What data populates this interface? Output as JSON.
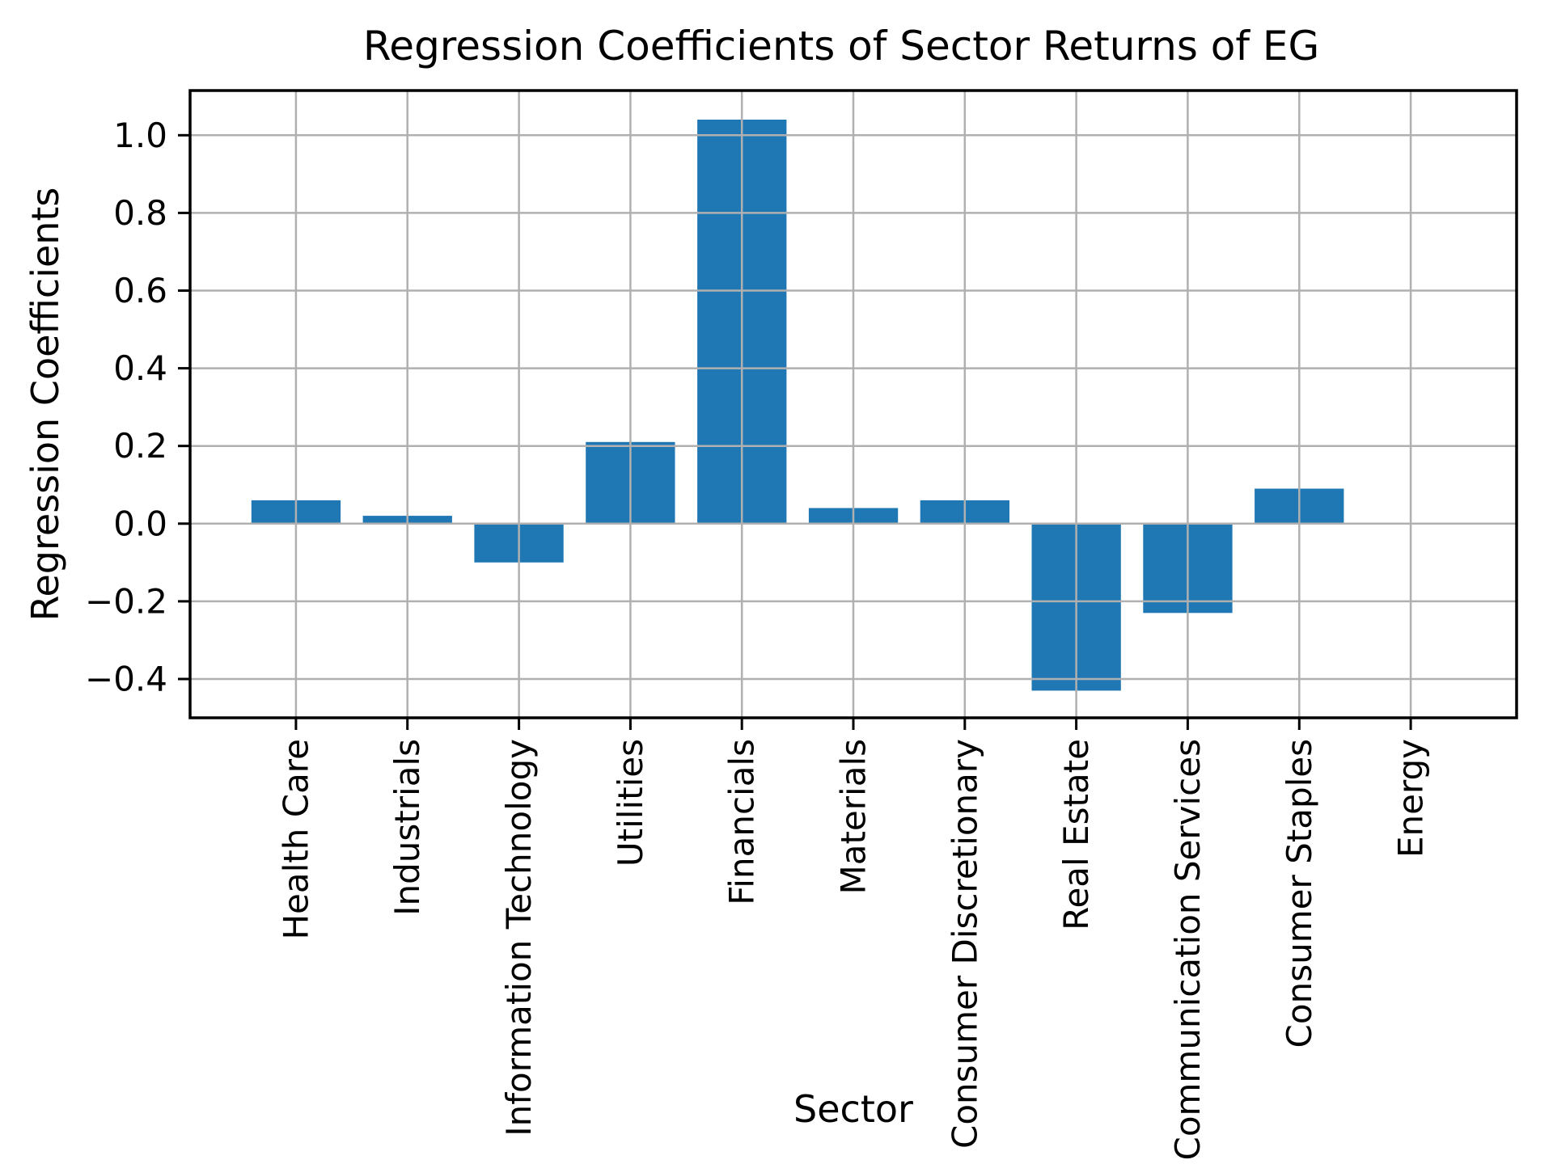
{
  "figure": {
    "background": "#ffffff",
    "text_color": "#000000",
    "spine_color": "#000000"
  },
  "chart_data": {
    "type": "bar",
    "title": "Regression Coefficients of Sector Returns of EG",
    "xlabel": "Sector",
    "ylabel": "Regression Coefficients",
    "categories": [
      "Health Care",
      "Industrials",
      "Information Technology",
      "Utilities",
      "Financials",
      "Materials",
      "Consumer Discretionary",
      "Real Estate",
      "Communication Services",
      "Consumer Staples",
      "Energy"
    ],
    "values": [
      0.06,
      0.02,
      -0.1,
      0.21,
      1.04,
      0.04,
      0.06,
      -0.43,
      -0.23,
      0.09,
      0.0
    ],
    "bar_color": "#1f77b4",
    "grid": true,
    "grid_color": "#b0b0b0",
    "ylim": [
      -0.5,
      1.115
    ],
    "yticks": [
      1.0,
      0.8,
      0.6,
      0.4,
      0.2,
      0.0,
      -0.2,
      -0.4
    ],
    "ytick_labels": [
      "1.0",
      "0.8",
      "0.6",
      "0.4",
      "0.2",
      "0.0",
      "−0.2",
      "−0.4"
    ],
    "xtick_rotation": 90,
    "legend": null
  }
}
